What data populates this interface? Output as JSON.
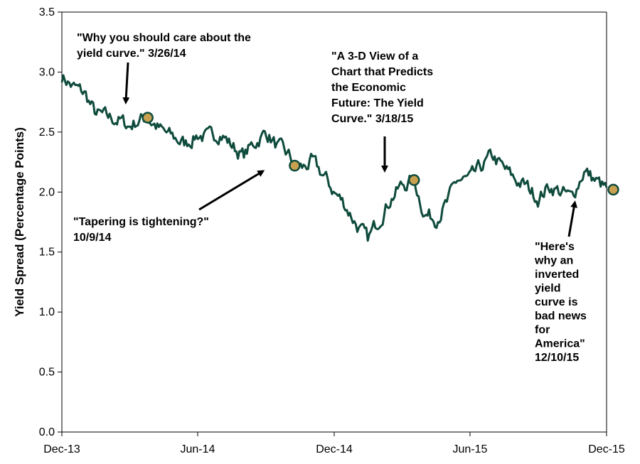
{
  "chart_data": {
    "type": "line",
    "title": "",
    "xlabel": "",
    "ylabel": "Yield Spread (Percentage Points)",
    "ylim": [
      0,
      3.5
    ],
    "yticks": [
      "0.0",
      "0.5",
      "1.0",
      "1.5",
      "2.0",
      "2.5",
      "3.0",
      "3.5"
    ],
    "xlim": [
      "2013-12-01",
      "2015-12-01"
    ],
    "xticks": [
      {
        "date": "2013-12-01",
        "label": "Dec-13"
      },
      {
        "date": "2014-06-01",
        "label": "Jun-14"
      },
      {
        "date": "2014-12-01",
        "label": "Dec-14"
      },
      {
        "date": "2015-06-01",
        "label": "Jun-15"
      },
      {
        "date": "2015-12-01",
        "label": "Dec-15"
      }
    ],
    "grid": false,
    "legend": "none",
    "colors": {
      "line": "#0f4b3c",
      "marker_fill": "#c8a050",
      "marker_stroke": "#0f4b3c",
      "arrow": "#000000"
    },
    "series": [
      {
        "x": [
          "2013-12-01",
          "2013-12-15",
          "2014-01-01",
          "2014-01-15",
          "2014-02-01",
          "2014-02-15",
          "2014-03-01",
          "2014-03-15",
          "2014-03-26",
          "2014-04-15",
          "2014-05-01",
          "2014-05-15",
          "2014-06-01",
          "2014-06-15",
          "2014-07-01",
          "2014-07-15",
          "2014-08-01",
          "2014-08-15",
          "2014-09-01",
          "2014-09-15",
          "2014-10-01",
          "2014-10-09",
          "2014-10-20",
          "2014-11-01",
          "2014-11-15",
          "2014-12-01",
          "2014-12-15",
          "2015-01-01",
          "2015-01-15",
          "2015-02-01",
          "2015-02-15",
          "2015-03-01",
          "2015-03-18",
          "2015-04-01",
          "2015-04-15",
          "2015-05-01",
          "2015-05-15",
          "2015-06-01",
          "2015-06-15",
          "2015-07-01",
          "2015-07-15",
          "2015-08-01",
          "2015-08-15",
          "2015-09-01",
          "2015-09-15",
          "2015-10-01",
          "2015-10-15",
          "2015-11-01",
          "2015-11-15",
          "2015-12-01"
        ],
        "y": [
          2.97,
          2.88,
          2.82,
          2.65,
          2.62,
          2.6,
          2.55,
          2.6,
          2.62,
          2.5,
          2.45,
          2.4,
          2.48,
          2.45,
          2.5,
          2.4,
          2.3,
          2.4,
          2.5,
          2.38,
          2.3,
          2.22,
          2.2,
          2.25,
          2.15,
          2.0,
          1.9,
          1.72,
          1.6,
          1.8,
          1.95,
          2.05,
          2.1,
          1.82,
          1.78,
          1.9,
          2.1,
          2.1,
          2.2,
          2.3,
          2.2,
          2.1,
          2.05,
          1.95,
          2.05,
          2.0,
          1.95,
          2.18,
          2.1,
          2.02
        ]
      }
    ],
    "markers": [
      {
        "x": "2014-03-26",
        "y": 2.62
      },
      {
        "x": "2014-10-09",
        "y": 2.22
      },
      {
        "x": "2015-03-18",
        "y": 2.1
      },
      {
        "x": "2015-12-10",
        "y": 2.02
      }
    ],
    "annotations": [
      {
        "lines": [
          "\"Why you should care about the",
          "yield curve.\" 3/26/14"
        ]
      },
      {
        "lines": [
          "\"Tapering is tightening?\"",
          "10/9/14"
        ]
      },
      {
        "lines": [
          "\"A 3-D View of a",
          "Chart that Predicts",
          "the Economic",
          "Future: The Yield",
          "Curve.\" 3/18/15"
        ]
      },
      {
        "lines": [
          "\"Here's",
          "why an",
          "inverted",
          "yield",
          "curve is",
          "bad news",
          "for",
          "America\"",
          "12/10/15"
        ]
      }
    ]
  }
}
